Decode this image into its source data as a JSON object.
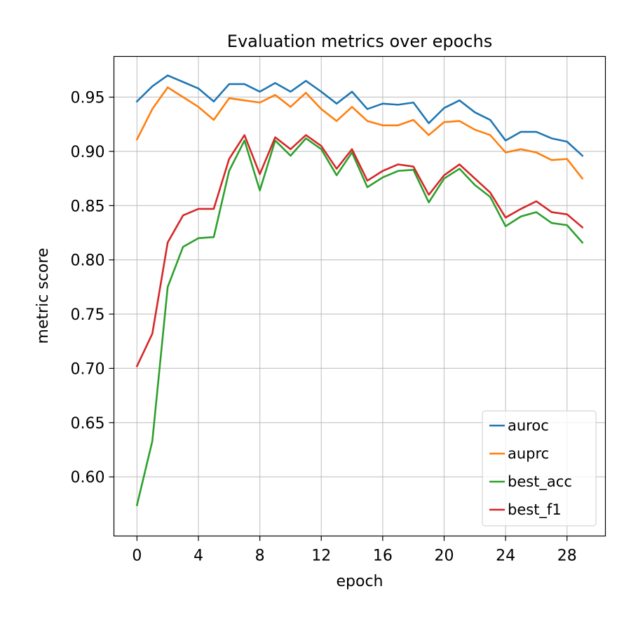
{
  "chart_data": {
    "type": "line",
    "title": "Evaluation metrics over epochs",
    "xlabel": "epoch",
    "ylabel": "metric score",
    "xlim": [
      -1.5,
      30.5
    ],
    "ylim": [
      0.5455,
      0.9875
    ],
    "xticks": [
      0,
      4,
      8,
      12,
      16,
      20,
      24,
      28
    ],
    "yticks": [
      0.6,
      0.65,
      0.7,
      0.75,
      0.8,
      0.85,
      0.9,
      0.95
    ],
    "ytick_labels": [
      "0.60",
      "0.65",
      "0.70",
      "0.75",
      "0.80",
      "0.85",
      "0.90",
      "0.95"
    ],
    "grid": true,
    "legend_position": "lower-right",
    "x": [
      0,
      1,
      2,
      3,
      4,
      5,
      6,
      7,
      8,
      9,
      10,
      11,
      12,
      13,
      14,
      15,
      16,
      17,
      18,
      19,
      20,
      21,
      22,
      23,
      24,
      25,
      26,
      27,
      28,
      29
    ],
    "series": [
      {
        "name": "auroc",
        "color": "#1f77b4",
        "values": [
          0.946,
          0.96,
          0.97,
          0.964,
          0.958,
          0.946,
          0.962,
          0.962,
          0.955,
          0.963,
          0.955,
          0.965,
          0.955,
          0.944,
          0.955,
          0.939,
          0.944,
          0.943,
          0.945,
          0.926,
          0.94,
          0.947,
          0.936,
          0.929,
          0.91,
          0.918,
          0.918,
          0.912,
          0.909,
          0.896
        ]
      },
      {
        "name": "auprc",
        "color": "#ff7f0e",
        "values": [
          0.911,
          0.939,
          0.959,
          0.95,
          0.941,
          0.929,
          0.949,
          0.947,
          0.945,
          0.952,
          0.941,
          0.954,
          0.939,
          0.928,
          0.941,
          0.928,
          0.924,
          0.924,
          0.929,
          0.915,
          0.927,
          0.928,
          0.92,
          0.915,
          0.899,
          0.902,
          0.899,
          0.892,
          0.893,
          0.875
        ]
      },
      {
        "name": "best_acc",
        "color": "#2ca02c",
        "values": [
          0.574,
          0.633,
          0.775,
          0.812,
          0.82,
          0.821,
          0.882,
          0.91,
          0.864,
          0.91,
          0.896,
          0.912,
          0.902,
          0.878,
          0.899,
          0.867,
          0.876,
          0.882,
          0.883,
          0.853,
          0.875,
          0.884,
          0.869,
          0.858,
          0.831,
          0.84,
          0.844,
          0.834,
          0.832,
          0.816
        ]
      },
      {
        "name": "best_f1",
        "color": "#d62728",
        "values": [
          0.702,
          0.732,
          0.816,
          0.841,
          0.847,
          0.847,
          0.893,
          0.915,
          0.879,
          0.913,
          0.902,
          0.915,
          0.905,
          0.884,
          0.902,
          0.873,
          0.882,
          0.888,
          0.886,
          0.86,
          0.878,
          0.888,
          0.875,
          0.862,
          0.839,
          0.847,
          0.854,
          0.844,
          0.842,
          0.83
        ]
      }
    ]
  }
}
